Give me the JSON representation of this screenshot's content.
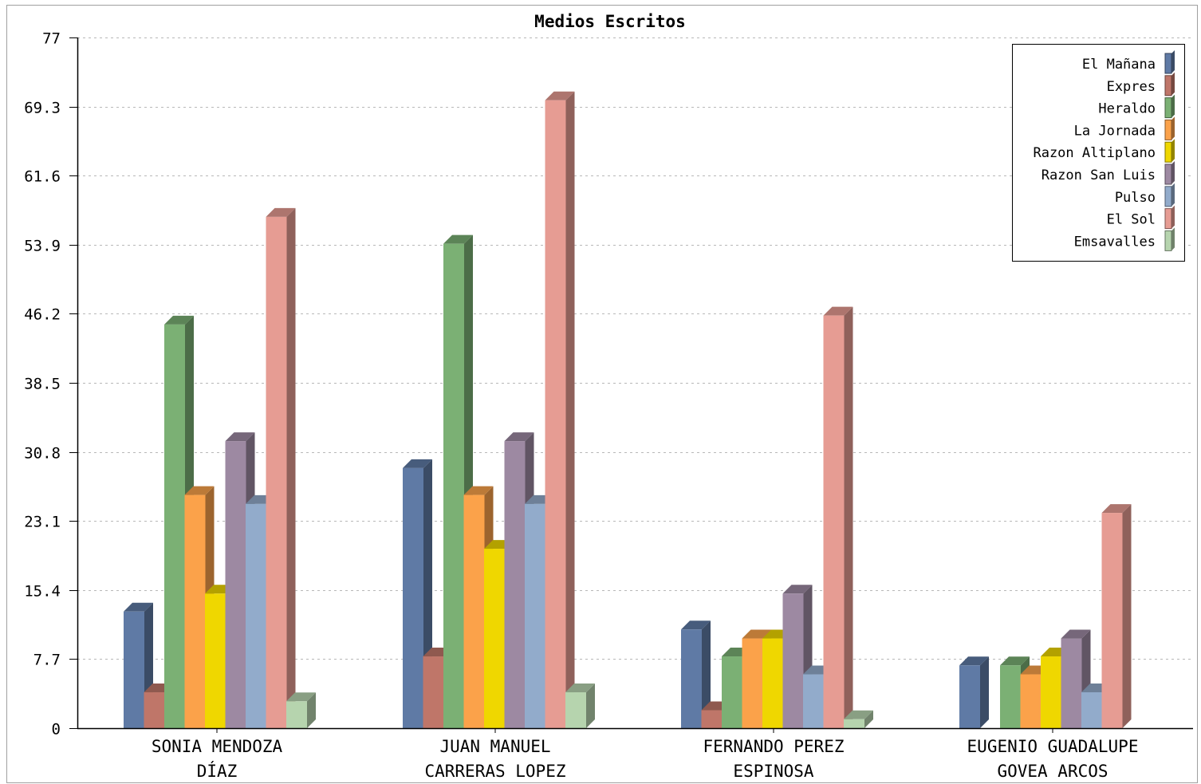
{
  "chart_data": {
    "type": "bar",
    "title": "Medios Escritos",
    "xlabel": "",
    "ylabel": "",
    "ylim": [
      0,
      77
    ],
    "yticks": [
      "0",
      "7.7",
      "15.4",
      "23.1",
      "30.8",
      "38.5",
      "46.2",
      "53.9",
      "61.6",
      "69.3",
      "77"
    ],
    "grid": true,
    "legend_position": "top-right",
    "categories": [
      [
        "SONIA MENDOZA",
        "DÍAZ"
      ],
      [
        "JUAN MANUEL",
        "CARRERAS LOPEZ"
      ],
      [
        "FERNANDO PEREZ",
        "ESPINOSA"
      ],
      [
        "EUGENIO GUADALUPE",
        "GOVEA ARCOS"
      ]
    ],
    "series": [
      {
        "name": "El Mañana",
        "color": "#5f7aa5",
        "values": [
          13,
          29,
          11,
          7
        ]
      },
      {
        "name": "Expres",
        "color": "#bf7669",
        "values": [
          4,
          8,
          2,
          0
        ]
      },
      {
        "name": "Heraldo",
        "color": "#7bb074",
        "values": [
          45,
          54,
          8,
          7
        ]
      },
      {
        "name": "La Jornada",
        "color": "#fba24a",
        "values": [
          26,
          26,
          10,
          6
        ]
      },
      {
        "name": "Razon Altiplano",
        "color": "#efd700",
        "values": [
          15,
          20,
          10,
          8
        ]
      },
      {
        "name": "Razon San Luis",
        "color": "#9d89a2",
        "values": [
          32,
          32,
          15,
          10
        ]
      },
      {
        "name": "Pulso",
        "color": "#92abcb",
        "values": [
          25,
          25,
          6,
          4
        ]
      },
      {
        "name": "El Sol",
        "color": "#e69c93",
        "values": [
          57,
          70,
          46,
          24
        ]
      },
      {
        "name": "Emsavalles",
        "color": "#b6d4ae",
        "values": [
          3,
          4,
          1,
          0
        ]
      }
    ]
  }
}
